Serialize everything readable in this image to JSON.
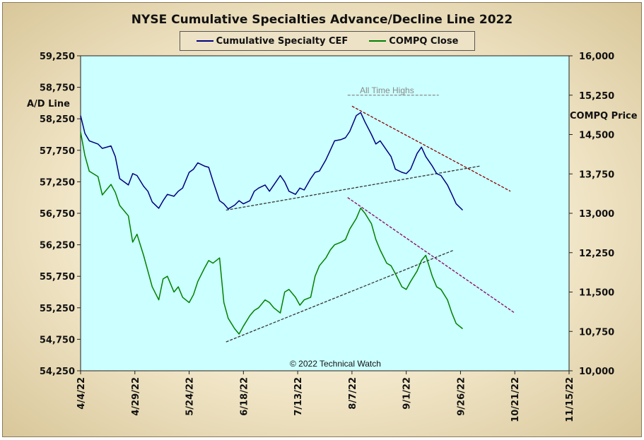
{
  "chart_data": {
    "type": "line",
    "title": "NYSE Cumulative Specialties Advance/Decline Line 2022",
    "ylabel_left": "A/D Line",
    "ylabel_right": "COMPQ Price",
    "ylim_left": [
      54250,
      59250
    ],
    "ylim_right": [
      10000,
      16000
    ],
    "y_ticks_left": [
      "59,250",
      "58,750",
      "58,250",
      "57,750",
      "57,250",
      "56,750",
      "56,250",
      "55,750",
      "55,250",
      "54,750",
      "54,250"
    ],
    "y_ticks_right": [
      "16,000",
      "15,250",
      "14,500",
      "13,750",
      "13,000",
      "12,250",
      "11,500",
      "10,750",
      "10,000"
    ],
    "x_ticks": [
      "4/4/22",
      "4/29/22",
      "5/24/22",
      "6/18/22",
      "7/13/22",
      "8/7/22",
      "9/1/22",
      "9/26/22",
      "10/21/22",
      "11/15/22"
    ],
    "legend_position": "top-center",
    "grid": false,
    "background_color": "#ccffff",
    "series": [
      {
        "name": "Cumulative Specialty CEF",
        "axis": "left",
        "color": "#000080",
        "x": [
          "2022-04-04",
          "2022-04-06",
          "2022-04-08",
          "2022-04-12",
          "2022-04-14",
          "2022-04-18",
          "2022-04-20",
          "2022-04-22",
          "2022-04-26",
          "2022-04-28",
          "2022-04-30",
          "2022-05-03",
          "2022-05-05",
          "2022-05-07",
          "2022-05-10",
          "2022-05-12",
          "2022-05-14",
          "2022-05-17",
          "2022-05-19",
          "2022-05-21",
          "2022-05-24",
          "2022-05-26",
          "2022-05-28",
          "2022-05-31",
          "2022-06-02",
          "2022-06-04",
          "2022-06-07",
          "2022-06-09",
          "2022-06-11",
          "2022-06-14",
          "2022-06-16",
          "2022-06-18",
          "2022-06-21",
          "2022-06-23",
          "2022-06-25",
          "2022-06-28",
          "2022-06-30",
          "2022-07-02",
          "2022-07-05",
          "2022-07-07",
          "2022-07-09",
          "2022-07-12",
          "2022-07-14",
          "2022-07-16",
          "2022-07-19",
          "2022-07-21",
          "2022-07-23",
          "2022-07-26",
          "2022-07-28",
          "2022-07-30",
          "2022-08-02",
          "2022-08-04",
          "2022-08-06",
          "2022-08-09",
          "2022-08-11",
          "2022-08-13",
          "2022-08-16",
          "2022-08-18",
          "2022-08-20",
          "2022-08-23",
          "2022-08-25",
          "2022-08-27",
          "2022-08-30",
          "2022-09-01",
          "2022-09-03",
          "2022-09-06",
          "2022-09-08",
          "2022-09-10",
          "2022-09-13",
          "2022-09-15",
          "2022-09-17",
          "2022-09-20",
          "2022-09-22",
          "2022-09-24",
          "2022-09-27"
        ],
        "values": [
          58300,
          58020,
          57900,
          57850,
          57780,
          57820,
          57650,
          57300,
          57200,
          57380,
          57350,
          57180,
          57100,
          56930,
          56830,
          56950,
          57050,
          57020,
          57100,
          57150,
          57400,
          57450,
          57550,
          57500,
          57480,
          57260,
          56950,
          56900,
          56820,
          56880,
          56950,
          56900,
          56950,
          57100,
          57150,
          57200,
          57100,
          57200,
          57350,
          57250,
          57100,
          57050,
          57150,
          57120,
          57300,
          57400,
          57420,
          57600,
          57750,
          57900,
          57920,
          57950,
          58050,
          58300,
          58350,
          58200,
          58000,
          57850,
          57900,
          57750,
          57650,
          57450,
          57400,
          57380,
          57450,
          57700,
          57800,
          57650,
          57500,
          57380,
          57350,
          57200,
          57050,
          56900,
          56800
        ]
      },
      {
        "name": "COMPQ Close",
        "axis": "right",
        "color": "#008000",
        "x": [
          "2022-04-04",
          "2022-04-06",
          "2022-04-08",
          "2022-04-12",
          "2022-04-14",
          "2022-04-18",
          "2022-04-20",
          "2022-04-22",
          "2022-04-26",
          "2022-04-28",
          "2022-04-30",
          "2022-05-03",
          "2022-05-05",
          "2022-05-07",
          "2022-05-10",
          "2022-05-12",
          "2022-05-14",
          "2022-05-17",
          "2022-05-19",
          "2022-05-21",
          "2022-05-24",
          "2022-05-26",
          "2022-05-28",
          "2022-05-31",
          "2022-06-02",
          "2022-06-04",
          "2022-06-07",
          "2022-06-09",
          "2022-06-11",
          "2022-06-14",
          "2022-06-16",
          "2022-06-18",
          "2022-06-21",
          "2022-06-23",
          "2022-06-25",
          "2022-06-28",
          "2022-06-30",
          "2022-07-02",
          "2022-07-05",
          "2022-07-07",
          "2022-07-09",
          "2022-07-12",
          "2022-07-14",
          "2022-07-16",
          "2022-07-19",
          "2022-07-21",
          "2022-07-23",
          "2022-07-26",
          "2022-07-28",
          "2022-07-30",
          "2022-08-02",
          "2022-08-04",
          "2022-08-06",
          "2022-08-09",
          "2022-08-11",
          "2022-08-13",
          "2022-08-16",
          "2022-08-18",
          "2022-08-20",
          "2022-08-23",
          "2022-08-25",
          "2022-08-27",
          "2022-08-30",
          "2022-09-01",
          "2022-09-03",
          "2022-09-06",
          "2022-09-08",
          "2022-09-10",
          "2022-09-13",
          "2022-09-15",
          "2022-09-17",
          "2022-09-20",
          "2022-09-22",
          "2022-09-24",
          "2022-09-27"
        ],
        "values": [
          14550,
          14100,
          13800,
          13700,
          13350,
          13550,
          13400,
          13150,
          12950,
          12450,
          12600,
          12200,
          11900,
          11600,
          11350,
          11750,
          11800,
          11500,
          11600,
          11400,
          11300,
          11450,
          11700,
          11950,
          12100,
          12050,
          12150,
          11300,
          11000,
          10800,
          10700,
          10850,
          11050,
          11150,
          11200,
          11350,
          11300,
          11200,
          11100,
          11500,
          11550,
          11400,
          11250,
          11350,
          11400,
          11800,
          12000,
          12150,
          12300,
          12400,
          12450,
          12500,
          12700,
          12900,
          13100,
          13000,
          12800,
          12500,
          12300,
          12050,
          12000,
          11850,
          11600,
          11550,
          11700,
          11900,
          12100,
          12200,
          11800,
          11600,
          11550,
          11350,
          11100,
          10900,
          10800
        ]
      }
    ],
    "annotations": [
      {
        "text": "All Time Highs",
        "y_right": 15250,
        "color": "#8a8a8a"
      },
      {
        "text": "© 2022 Technical Watch"
      }
    ],
    "trendlines": [
      {
        "axis": "left",
        "from": {
          "x": "2022-06-10",
          "y": 56800
        },
        "to": {
          "x": "2022-10-05",
          "y": 57500
        },
        "color": "#333333",
        "style": "dashed"
      },
      {
        "axis": "left",
        "from": {
          "x": "2022-08-07",
          "y": 58450
        },
        "to": {
          "x": "2022-10-19",
          "y": 57100
        },
        "color": "#8b0000",
        "style": "dashed"
      },
      {
        "axis": "right",
        "from": {
          "x": "2022-06-10",
          "y": 10550
        },
        "to": {
          "x": "2022-09-23",
          "y": 12300
        },
        "color": "#333333",
        "style": "dashed"
      },
      {
        "axis": "right",
        "from": {
          "x": "2022-08-05",
          "y": 13300
        },
        "to": {
          "x": "2022-10-21",
          "y": 11100
        },
        "color": "#8b0060",
        "style": "dashed"
      },
      {
        "axis": "right",
        "from": {
          "x": "2022-08-05",
          "y": 15250
        },
        "to": {
          "x": "2022-09-16",
          "y": 15250
        },
        "color": "#8a8a8a",
        "style": "dashed"
      }
    ]
  }
}
